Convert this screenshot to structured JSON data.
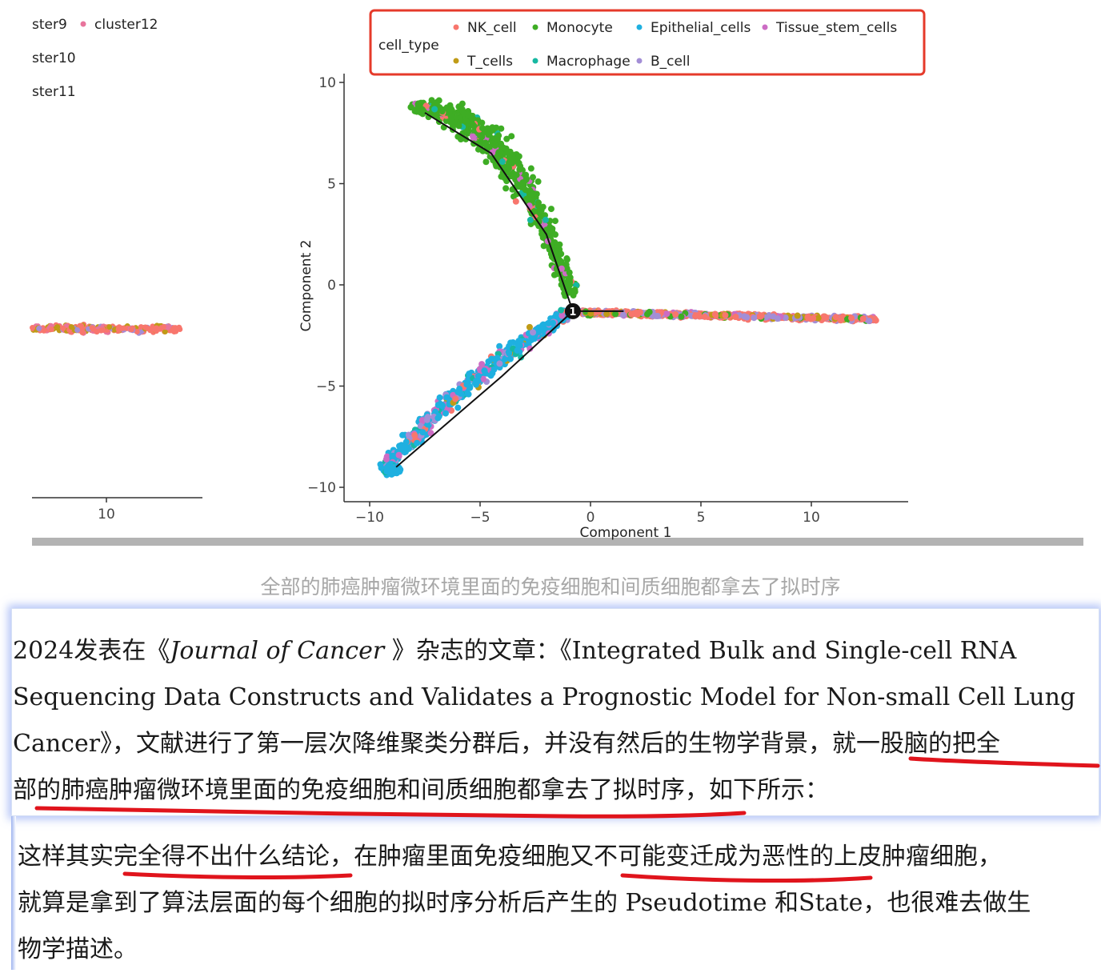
{
  "figure": {
    "left_panel": {
      "legend_items": [
        {
          "label": "ster9",
          "color": ""
        },
        {
          "label": "cluster12",
          "color": "#e8749c"
        },
        {
          "label": "ster10",
          "color": ""
        },
        {
          "label": "ster11",
          "color": ""
        }
      ],
      "x_tick": "10"
    }
  },
  "chart_data": {
    "type": "scatter",
    "xlabel": "Component 1",
    "ylabel": "Component 2",
    "xlim": [
      -10.8,
      14.3
    ],
    "ylim": [
      -10.8,
      10.5
    ],
    "x_ticks": [
      "−10",
      "−5",
      "0",
      "5",
      "10"
    ],
    "y_ticks": [
      "−10",
      "−5",
      "0",
      "5",
      "10"
    ],
    "legend_title": "cell_type",
    "legend_position": "top",
    "branch_node_label": "1",
    "trajectory": {
      "center": [
        -0.8,
        -1.3
      ],
      "upper_branch_end": [
        -7.5,
        8.8
      ],
      "lower_branch_end": [
        -8.8,
        -9.2
      ],
      "right_branch_end": [
        12.5,
        -1.8
      ]
    },
    "series": [
      {
        "name": "NK_cell",
        "color": "#f8766d"
      },
      {
        "name": "Monocyte",
        "color": "#3ead24"
      },
      {
        "name": "Epithelial_cells",
        "color": "#1fb0e0"
      },
      {
        "name": "Tissue_stem_cells",
        "color": "#cc6cc4"
      },
      {
        "name": "T_cells",
        "color": "#c09b17"
      },
      {
        "name": "Macrophage",
        "color": "#17b8a2"
      },
      {
        "name": "B_cell",
        "color": "#a38ed6"
      }
    ]
  },
  "caption": "全部的肺癌肿瘤微环境里面的免疫细胞和间质细胞都拿去了拟时序",
  "quote": {
    "line1_prefix": "2024发表在《",
    "line1_journal": "Journal of Cancer",
    "line1_suffix": " 》杂志的文章：《Integrated Bulk and Single-cell RNA",
    "line2": "Sequencing Data Constructs and Validates a Prognostic Model for Non-small Cell Lung",
    "line3": "Cancer》，文献进行了第一层次降维聚类分群后，并没有然后的生物学背景，就一股脑的把全",
    "line4": "部的肺癌肿瘤微环境里面的免疫细胞和间质细胞都拿去了拟时序，如下所示："
  },
  "body": {
    "line1": "这样其实完全得不出什么结论，在肿瘤里面免疫细胞又不可能变迁成为恶性的上皮肿瘤细胞，",
    "line2": "就算是拿到了算法层面的每个细胞的拟时序分析后产生的  Pseudotime 和State，也很难去做生",
    "line3": "物学描述。"
  },
  "annotation_color": "#e0141c"
}
